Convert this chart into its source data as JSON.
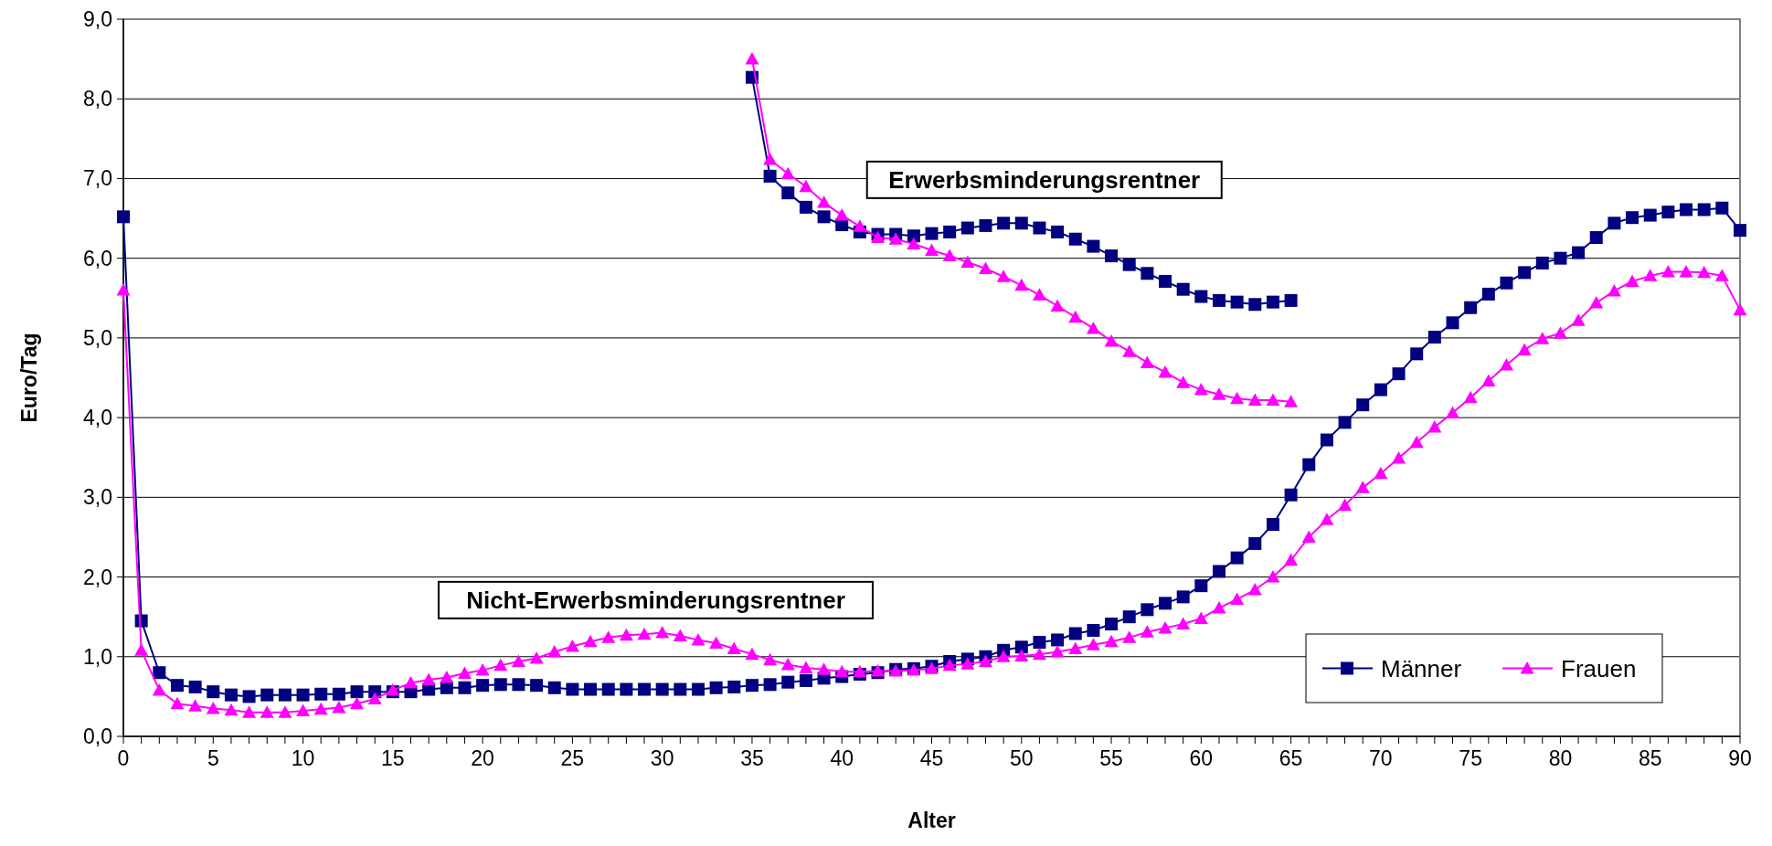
{
  "chart_data": {
    "type": "line",
    "xlabel": "Alter",
    "ylabel": "Euro/Tag",
    "x": [
      0,
      1,
      2,
      3,
      4,
      5,
      6,
      7,
      8,
      9,
      10,
      11,
      12,
      13,
      14,
      15,
      16,
      17,
      18,
      19,
      20,
      21,
      22,
      23,
      24,
      25,
      26,
      27,
      28,
      29,
      30,
      31,
      32,
      33,
      34,
      35,
      36,
      37,
      38,
      39,
      40,
      41,
      42,
      43,
      44,
      45,
      46,
      47,
      48,
      49,
      50,
      51,
      52,
      53,
      54,
      55,
      56,
      57,
      58,
      59,
      60,
      61,
      62,
      63,
      64,
      65,
      66,
      67,
      68,
      69,
      70,
      71,
      72,
      73,
      74,
      75,
      76,
      77,
      78,
      79,
      80,
      81,
      82,
      83,
      84,
      85,
      86,
      87,
      88,
      89,
      90
    ],
    "series": [
      {
        "name": "Männer",
        "color": "#000080",
        "marker": "square",
        "values": [
          6.52,
          1.45,
          0.8,
          0.64,
          0.62,
          0.56,
          0.52,
          0.5,
          0.52,
          0.52,
          0.52,
          0.53,
          0.53,
          0.56,
          0.56,
          0.56,
          0.56,
          0.59,
          0.61,
          0.61,
          0.64,
          0.65,
          0.65,
          0.64,
          0.61,
          0.59,
          0.59,
          0.59,
          0.59,
          0.59,
          0.59,
          0.59,
          0.59,
          0.61,
          0.62,
          0.64,
          0.65,
          0.68,
          0.7,
          0.73,
          0.75,
          0.78,
          0.8,
          0.84,
          0.85,
          0.88,
          0.94,
          0.97,
          1.0,
          1.08,
          1.12,
          1.18,
          1.21,
          1.29,
          1.33,
          1.41,
          1.5,
          1.59,
          1.67,
          1.75,
          1.89,
          2.07,
          2.24,
          2.42,
          2.66,
          3.03,
          3.41,
          3.72,
          3.94,
          4.16,
          4.35,
          4.55,
          4.8,
          5.01,
          5.19,
          5.38,
          5.55,
          5.69,
          5.82,
          5.94,
          6.0,
          6.07,
          6.26,
          6.44,
          6.51,
          6.54,
          6.58,
          6.61,
          6.61,
          6.63,
          6.35
        ]
      },
      {
        "name": "Frauen",
        "color": "#ff00ff",
        "marker": "triangle",
        "values": [
          5.6,
          1.08,
          0.58,
          0.41,
          0.38,
          0.35,
          0.33,
          0.3,
          0.3,
          0.3,
          0.32,
          0.34,
          0.36,
          0.41,
          0.47,
          0.58,
          0.67,
          0.71,
          0.74,
          0.79,
          0.83,
          0.89,
          0.94,
          0.98,
          1.06,
          1.13,
          1.19,
          1.24,
          1.27,
          1.28,
          1.3,
          1.26,
          1.21,
          1.17,
          1.1,
          1.03,
          0.96,
          0.9,
          0.86,
          0.84,
          0.81,
          0.81,
          0.82,
          0.82,
          0.83,
          0.85,
          0.89,
          0.91,
          0.94,
          1.0,
          1.01,
          1.03,
          1.06,
          1.1,
          1.15,
          1.19,
          1.24,
          1.31,
          1.36,
          1.41,
          1.48,
          1.61,
          1.72,
          1.84,
          2.0,
          2.21,
          2.5,
          2.72,
          2.9,
          3.12,
          3.3,
          3.49,
          3.69,
          3.88,
          4.06,
          4.25,
          4.46,
          4.66,
          4.85,
          4.99,
          5.06,
          5.22,
          5.44,
          5.59,
          5.71,
          5.78,
          5.83,
          5.83,
          5.82,
          5.78,
          5.35
        ]
      },
      {
        "color": "#000080",
        "marker": "square",
        "x": [
          35,
          36,
          37,
          38,
          39,
          40,
          41,
          42,
          43,
          44,
          45,
          46,
          47,
          48,
          49,
          50,
          51,
          52,
          53,
          54,
          55,
          56,
          57,
          58,
          59,
          60,
          61,
          62,
          63,
          64,
          65
        ],
        "values": [
          8.27,
          7.03,
          6.82,
          6.64,
          6.52,
          6.42,
          6.33,
          6.3,
          6.3,
          6.28,
          6.31,
          6.33,
          6.38,
          6.41,
          6.44,
          6.44,
          6.38,
          6.33,
          6.24,
          6.15,
          6.03,
          5.92,
          5.81,
          5.71,
          5.61,
          5.52,
          5.47,
          5.45,
          5.42,
          5.45,
          5.47
        ]
      },
      {
        "color": "#ff00ff",
        "marker": "triangle",
        "x": [
          35,
          36,
          37,
          38,
          39,
          40,
          41,
          42,
          43,
          44,
          45,
          46,
          47,
          48,
          49,
          50,
          51,
          52,
          53,
          54,
          55,
          56,
          57,
          58,
          59,
          60,
          61,
          62,
          63,
          64,
          65
        ],
        "values": [
          8.5,
          7.24,
          7.06,
          6.9,
          6.7,
          6.54,
          6.4,
          6.26,
          6.24,
          6.18,
          6.1,
          6.03,
          5.95,
          5.87,
          5.77,
          5.66,
          5.54,
          5.4,
          5.26,
          5.12,
          4.96,
          4.83,
          4.69,
          4.57,
          4.44,
          4.35,
          4.29,
          4.24,
          4.22,
          4.22,
          4.2
        ]
      }
    ],
    "xlim": [
      0,
      90
    ],
    "xticks": [
      {
        "value": 0,
        "label": "0"
      },
      {
        "value": 1,
        "label": null
      },
      {
        "value": 2,
        "label": null
      },
      {
        "value": 3,
        "label": null
      },
      {
        "value": 4,
        "label": null
      },
      {
        "value": 5,
        "label": "5"
      },
      {
        "value": 6,
        "label": null
      },
      {
        "value": 7,
        "label": null
      },
      {
        "value": 8,
        "label": null
      },
      {
        "value": 9,
        "label": null
      },
      {
        "value": 10,
        "label": "10"
      },
      {
        "value": 11,
        "label": null
      },
      {
        "value": 12,
        "label": null
      },
      {
        "value": 13,
        "label": null
      },
      {
        "value": 14,
        "label": null
      },
      {
        "value": 15,
        "label": "15"
      },
      {
        "value": 16,
        "label": null
      },
      {
        "value": 17,
        "label": null
      },
      {
        "value": 18,
        "label": null
      },
      {
        "value": 19,
        "label": null
      },
      {
        "value": 20,
        "label": "20"
      },
      {
        "value": 21,
        "label": null
      },
      {
        "value": 22,
        "label": null
      },
      {
        "value": 23,
        "label": null
      },
      {
        "value": 24,
        "label": null
      },
      {
        "value": 25,
        "label": "25"
      },
      {
        "value": 26,
        "label": null
      },
      {
        "value": 27,
        "label": null
      },
      {
        "value": 28,
        "label": null
      },
      {
        "value": 29,
        "label": null
      },
      {
        "value": 30,
        "label": "30"
      },
      {
        "value": 31,
        "label": null
      },
      {
        "value": 32,
        "label": null
      },
      {
        "value": 33,
        "label": null
      },
      {
        "value": 34,
        "label": null
      },
      {
        "value": 35,
        "label": "35"
      },
      {
        "value": 36,
        "label": null
      },
      {
        "value": 37,
        "label": null
      },
      {
        "value": 38,
        "label": null
      },
      {
        "value": 39,
        "label": null
      },
      {
        "value": 40,
        "label": "40"
      },
      {
        "value": 41,
        "label": null
      },
      {
        "value": 42,
        "label": null
      },
      {
        "value": 43,
        "label": null
      },
      {
        "value": 44,
        "label": null
      },
      {
        "value": 45,
        "label": "45"
      },
      {
        "value": 46,
        "label": null
      },
      {
        "value": 47,
        "label": null
      },
      {
        "value": 48,
        "label": null
      },
      {
        "value": 49,
        "label": null
      },
      {
        "value": 50,
        "label": "50"
      },
      {
        "value": 51,
        "label": null
      },
      {
        "value": 52,
        "label": null
      },
      {
        "value": 53,
        "label": null
      },
      {
        "value": 54,
        "label": null
      },
      {
        "value": 55,
        "label": "55"
      },
      {
        "value": 56,
        "label": null
      },
      {
        "value": 57,
        "label": null
      },
      {
        "value": 58,
        "label": null
      },
      {
        "value": 59,
        "label": null
      },
      {
        "value": 60,
        "label": "60"
      },
      {
        "value": 61,
        "label": null
      },
      {
        "value": 62,
        "label": null
      },
      {
        "value": 63,
        "label": null
      },
      {
        "value": 64,
        "label": null
      },
      {
        "value": 65,
        "label": "65"
      },
      {
        "value": 66,
        "label": null
      },
      {
        "value": 67,
        "label": null
      },
      {
        "value": 68,
        "label": null
      },
      {
        "value": 69,
        "label": null
      },
      {
        "value": 70,
        "label": "70"
      },
      {
        "value": 71,
        "label": null
      },
      {
        "value": 72,
        "label": null
      },
      {
        "value": 73,
        "label": null
      },
      {
        "value": 74,
        "label": null
      },
      {
        "value": 75,
        "label": "75"
      },
      {
        "value": 76,
        "label": null
      },
      {
        "value": 77,
        "label": null
      },
      {
        "value": 78,
        "label": null
      },
      {
        "value": 79,
        "label": null
      },
      {
        "value": 80,
        "label": "80"
      },
      {
        "value": 81,
        "label": null
      },
      {
        "value": 82,
        "label": null
      },
      {
        "value": 83,
        "label": null
      },
      {
        "value": 84,
        "label": null
      },
      {
        "value": 85,
        "label": "85"
      },
      {
        "value": 86,
        "label": null
      },
      {
        "value": 87,
        "label": null
      },
      {
        "value": 88,
        "label": null
      },
      {
        "value": 89,
        "label": null
      },
      {
        "value": 90,
        "label": "90"
      }
    ],
    "ylim": [
      0,
      9
    ],
    "yticks": [
      {
        "value": 0,
        "label": "0,0"
      },
      {
        "value": 1,
        "label": "1,0"
      },
      {
        "value": 2,
        "label": "2,0"
      },
      {
        "value": 3,
        "label": "3,0"
      },
      {
        "value": 4,
        "label": "4,0"
      },
      {
        "value": 5,
        "label": "5,0"
      },
      {
        "value": 6,
        "label": "6,0"
      },
      {
        "value": 7,
        "label": "7,0"
      },
      {
        "value": 8,
        "label": "8,0"
      },
      {
        "value": 9,
        "label": "9,0"
      }
    ],
    "grid": "y",
    "legend": "bottom right",
    "line_style": "solid",
    "annotations": [
      "Erwerbsminderungsrentner",
      "Nicht-Erwerbsminderungsrentner"
    ]
  }
}
